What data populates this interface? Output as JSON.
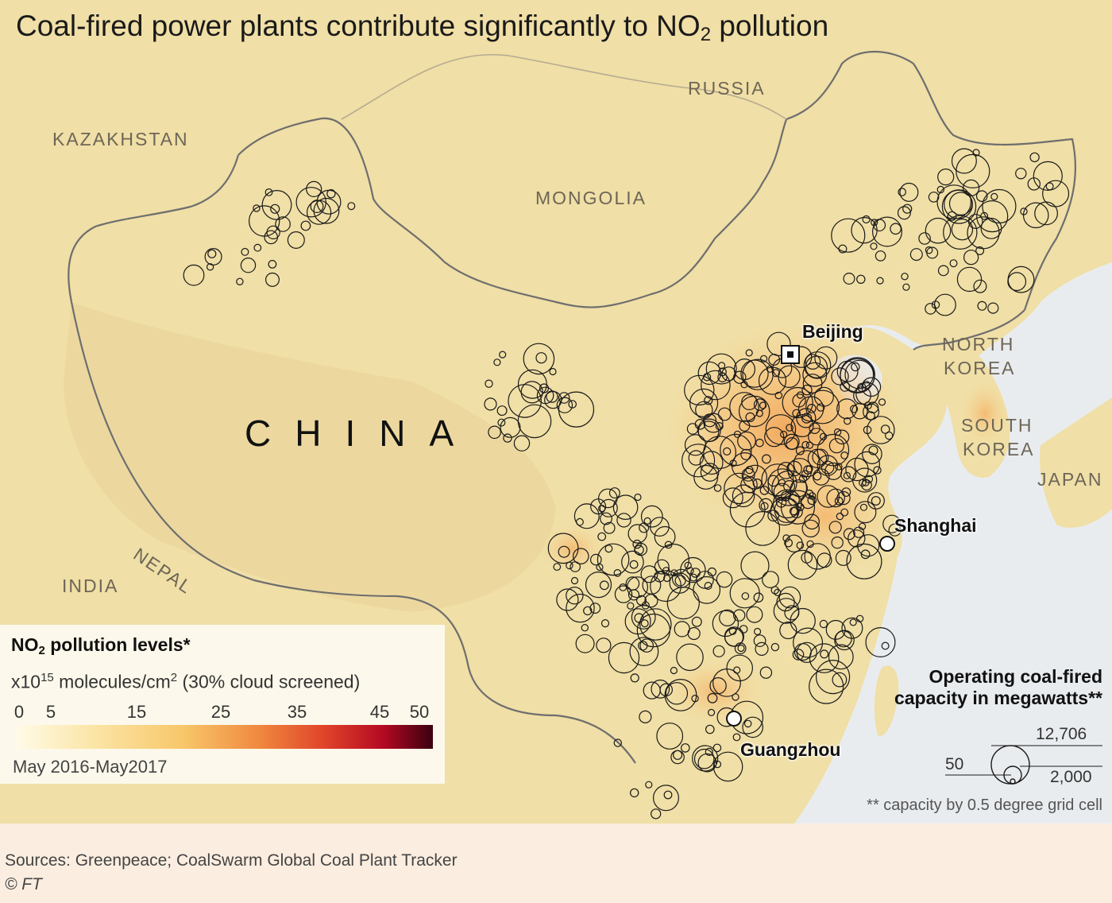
{
  "title": {
    "main": "Coal-fired power plants contribute significantly to NO",
    "sub": "2",
    "tail": " pollution"
  },
  "countries": {
    "kazakhstan": "KAZAKHSTAN",
    "russia": "RUSSIA",
    "mongolia": "MONGOLIA",
    "china": "CHINA",
    "north_korea_1": "NORTH",
    "north_korea_2": "KOREA",
    "south_korea_1": "SOUTH",
    "south_korea_2": "KOREA",
    "japan": "JAPAN",
    "nepal": "NEPAL",
    "india": "INDIA"
  },
  "cities": {
    "beijing": "Beijing",
    "shanghai": "Shanghai",
    "guangzhou": "Guangzhou"
  },
  "no2_legend": {
    "title_pre": "NO",
    "title_sub": "2",
    "title_post": " pollution levels*",
    "unit_pre": "x10",
    "unit_sup1": "15",
    "unit_mid": " molecules/cm",
    "unit_sup2": "2",
    "unit_post": " (30% cloud screened)",
    "ticks": [
      "0",
      "5",
      "15",
      "25",
      "35",
      "45",
      "50"
    ],
    "colors": [
      "#fffbe8",
      "#fbe6a8",
      "#f8c76a",
      "#f08a40",
      "#e0432a",
      "#b50a22",
      "#3a0010"
    ],
    "period": "May 2016-May2017"
  },
  "capacity_legend": {
    "title_line1": "Operating coal-fired",
    "title_line2": "capacity in megawatts**",
    "values": [
      "12,706",
      "2,000",
      "50"
    ],
    "note": "** capacity by 0.5 degree grid cell"
  },
  "footer": {
    "sources": "Sources: Greenpeace; CoalSwarm Global Coal Plant Tracker",
    "credit": "© FT"
  }
}
